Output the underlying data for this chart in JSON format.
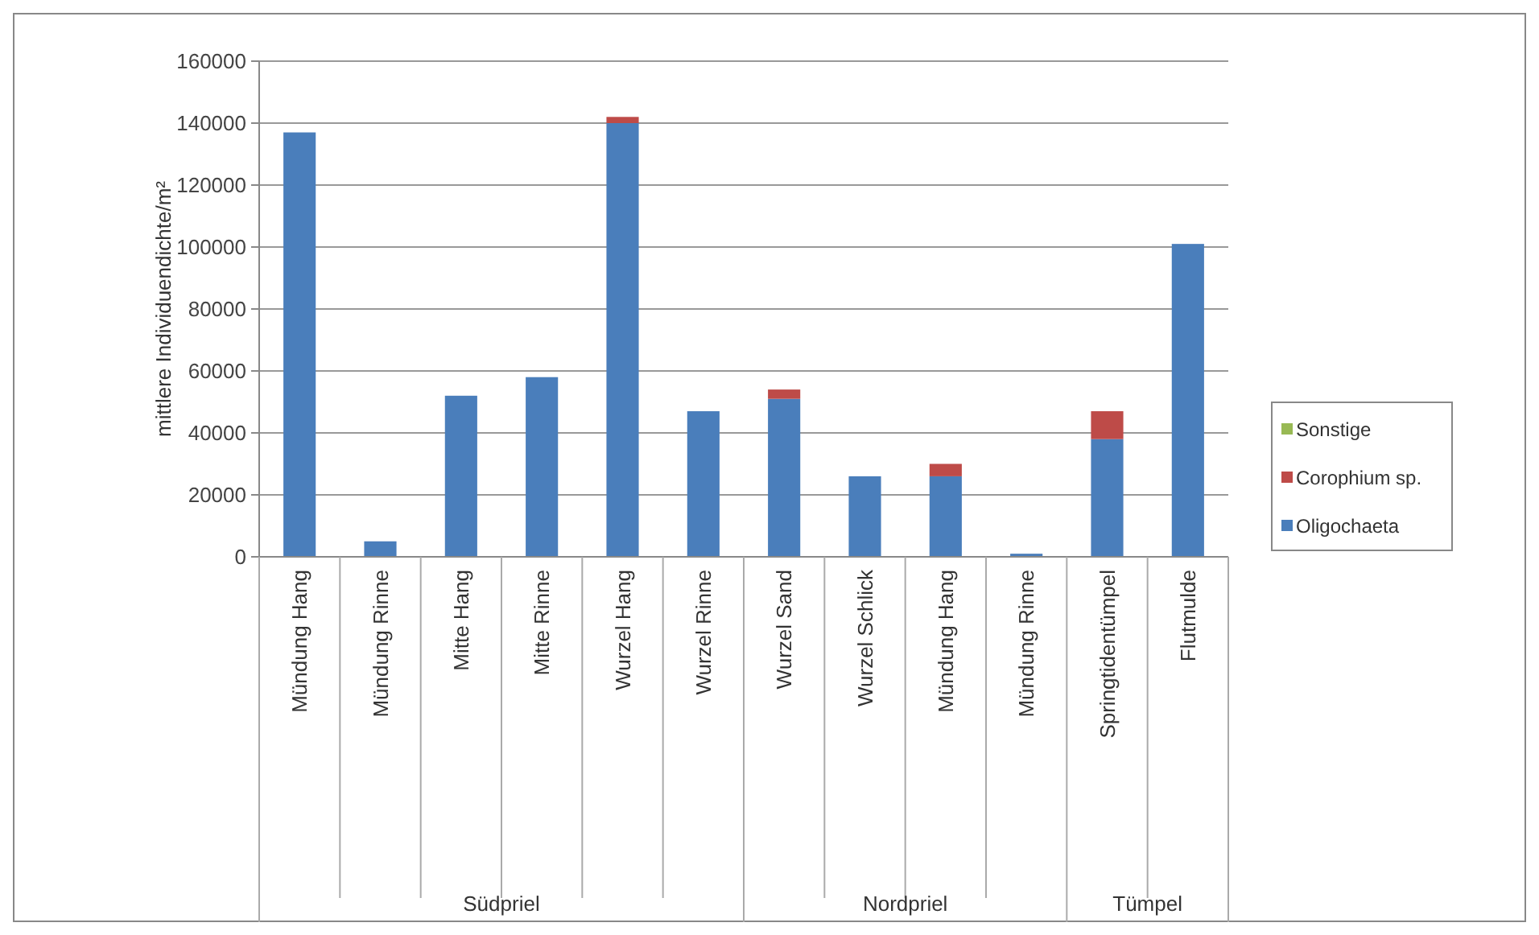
{
  "chart_data": {
    "type": "bar",
    "stacked": true,
    "ylabel": "mittlere Individuendichte/m²",
    "categories": [
      "Mündung Hang",
      "Mündung Rinne",
      "Mitte Hang",
      "Mitte Rinne",
      "Wurzel Hang",
      "Wurzel Rinne",
      "Wurzel Sand",
      "Wurzel Schlick",
      "Mündung Hang",
      "Mündung Rinne",
      "Springtidentümpel",
      "Flutmulde"
    ],
    "series": [
      {
        "name": "Oligochaeta",
        "color": "#4a7ebb",
        "values": [
          137000,
          5000,
          52000,
          58000,
          140000,
          47000,
          51000,
          26000,
          26000,
          1000,
          38000,
          101000
        ]
      },
      {
        "name": "Corophium sp.",
        "color": "#be4b48",
        "values": [
          0,
          0,
          0,
          0,
          2000,
          0,
          3000,
          0,
          4000,
          0,
          9000,
          0
        ]
      },
      {
        "name": "Sonstige",
        "color": "#98b954",
        "values": [
          0,
          0,
          0,
          0,
          0,
          0,
          0,
          0,
          0,
          0,
          0,
          0
        ]
      }
    ],
    "annotations": [
      "Südpriel",
      "Nordpriel",
      "Tümpel"
    ],
    "ylim": [
      0,
      160000
    ],
    "yticks": [
      0,
      20000,
      40000,
      60000,
      80000,
      100000,
      120000,
      140000,
      160000
    ],
    "grid": "y",
    "legend": "right"
  }
}
